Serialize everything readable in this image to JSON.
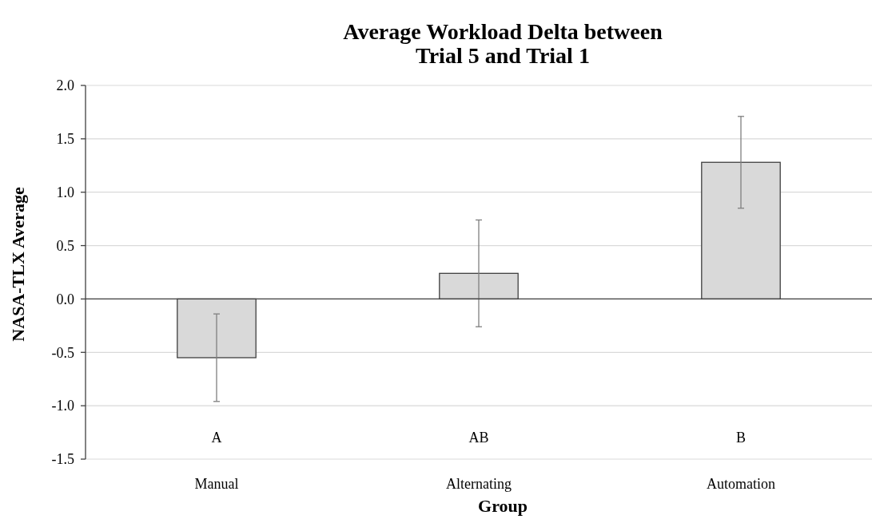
{
  "chart_data": {
    "type": "bar",
    "title": "Average Workload Delta between\nTrial 5 and Trial 1",
    "xlabel": "Group",
    "ylabel": "NASA-TLX Average",
    "categories": [
      "Manual",
      "Alternating",
      "Automation"
    ],
    "values": [
      -0.55,
      0.24,
      1.28
    ],
    "errors": [
      0.41,
      0.5,
      0.43
    ],
    "color": "#d9d9d9",
    "ylim": [
      -1.5,
      2.0
    ],
    "yticks": [
      {
        "value": -1.5,
        "label": "-1.5"
      },
      {
        "value": -1.0,
        "label": "-1.0"
      },
      {
        "value": -0.5,
        "label": "-0.5"
      },
      {
        "value": 0,
        "label": "0.0"
      },
      {
        "value": 0.5,
        "label": "0.5"
      },
      {
        "value": 1.0,
        "label": "1.0"
      },
      {
        "value": 1.5,
        "label": "1.5"
      },
      {
        "value": 2.0,
        "label": "2.0"
      }
    ],
    "grid": "y",
    "annotations": [
      "A",
      "AB",
      "B"
    ]
  }
}
